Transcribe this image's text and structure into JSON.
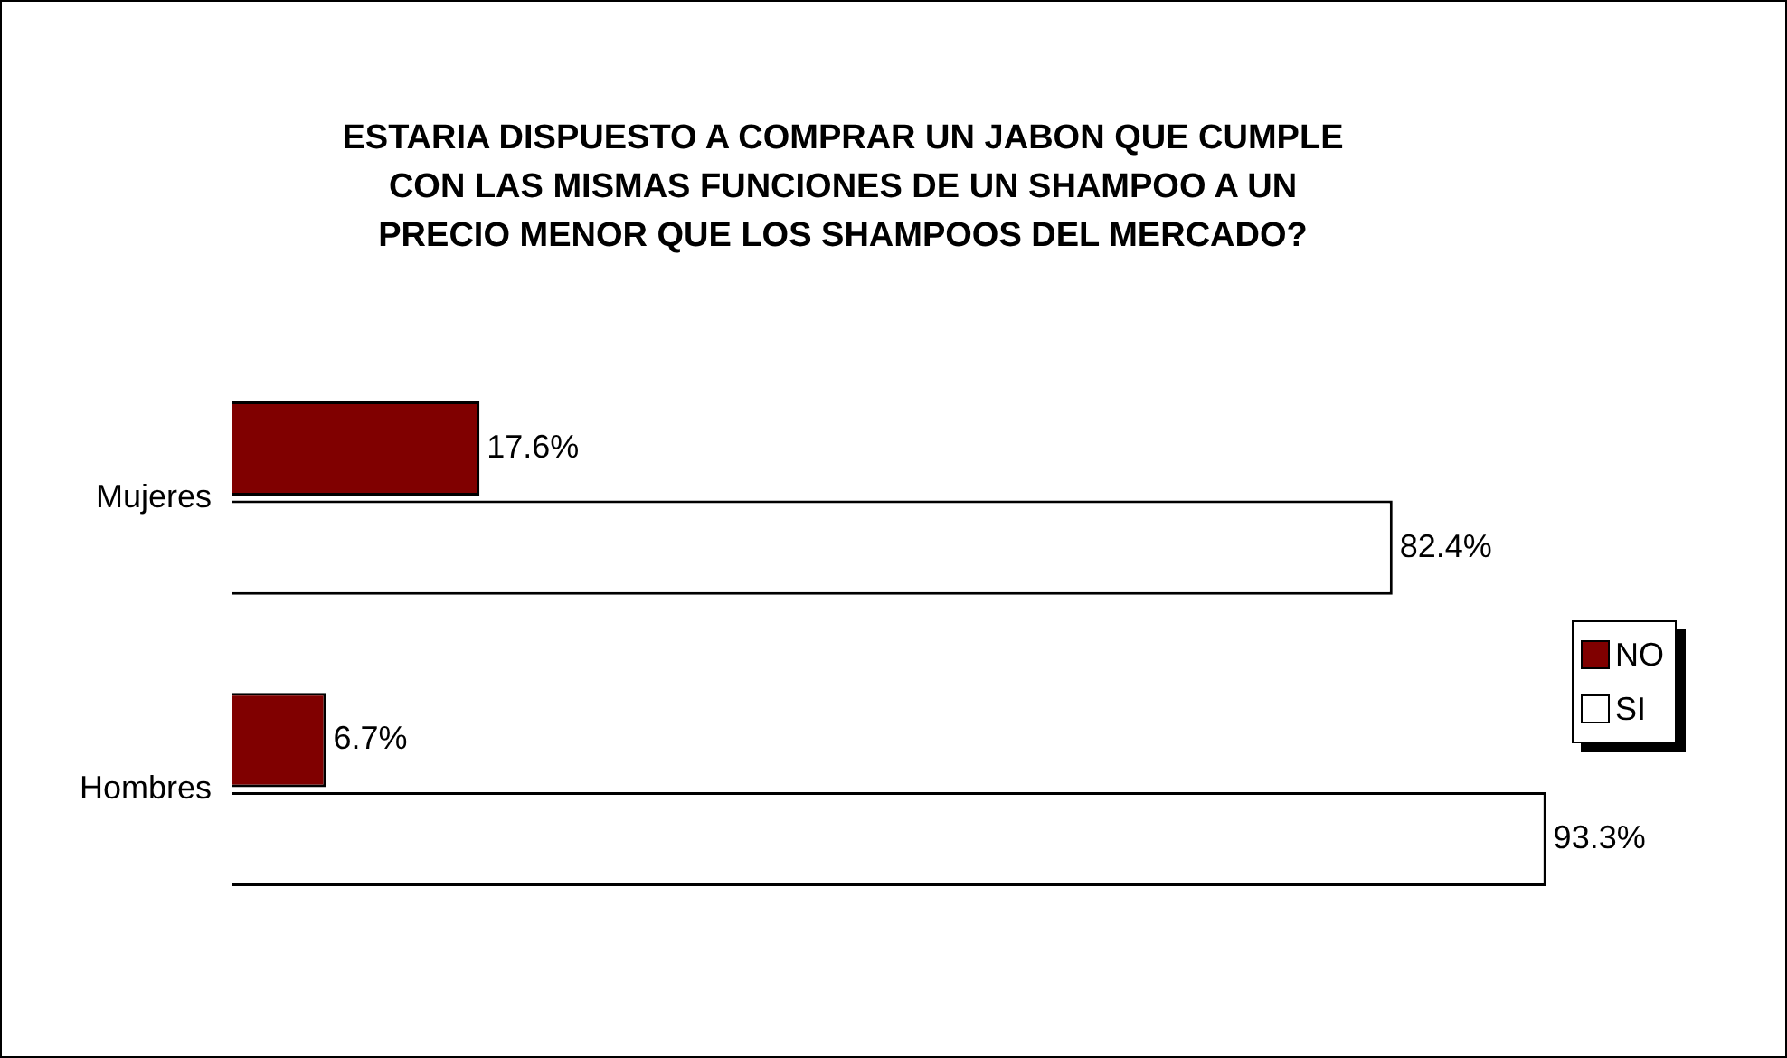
{
  "chart_data": {
    "type": "bar",
    "orientation": "horizontal",
    "title": "ESTARIA DISPUESTO A COMPRAR UN JABON QUE CUMPLE CON LAS MISMAS FUNCIONES DE UN SHAMPOO A UN PRECIO MENOR QUE LOS SHAMPOOS DEL MERCADO?",
    "categories": [
      "Mujeres",
      "Hombres"
    ],
    "series": [
      {
        "name": "NO",
        "color": "#800000",
        "values": [
          17.6,
          6.7
        ],
        "value_labels": [
          "17.6%",
          "6.7%"
        ]
      },
      {
        "name": "SI",
        "color": "#ffffff",
        "values": [
          82.4,
          93.3
        ],
        "value_labels": [
          "82.4%",
          "93.3%"
        ]
      }
    ],
    "legend": "right"
  }
}
